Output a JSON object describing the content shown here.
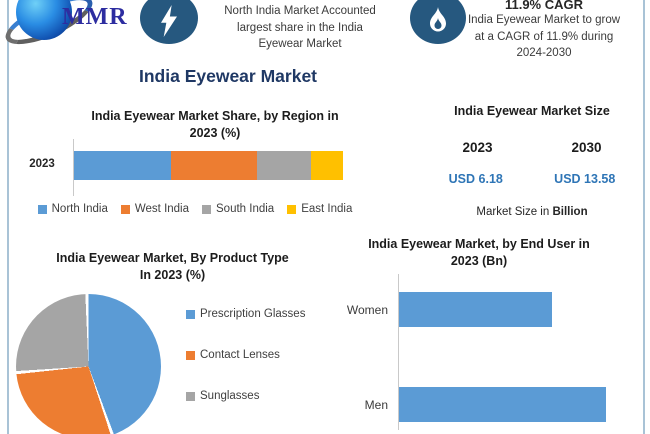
{
  "palette": {
    "blue": "#5B9BD5",
    "orange": "#ED7D31",
    "gray": "#A5A5A5",
    "yellow": "#FFC000",
    "navy_title": "#1F3864",
    "value_blue": "#2E75B6",
    "icon_blue": "#26587F",
    "frame": "#A9C3D6"
  },
  "logo": {
    "text": "MMR"
  },
  "header": {
    "highlight1": {
      "lines": [
        "North India Market Accounted",
        "largest share in the India",
        "Eyewear Market"
      ]
    },
    "highlight2": {
      "title": "11.9% CAGR",
      "lines": [
        "India Eyewear Market to grow",
        "at a CAGR of 11.9% during",
        "2024-2030"
      ]
    }
  },
  "main_title": "India Eyewear Market",
  "chart_data": [
    {
      "type": "bar",
      "subtype": "stacked-horizontal",
      "title": "India Eyewear Market Share, by Region in 2023 (%)",
      "title_lines": [
        "India Eyewear Market Share, by Region in",
        "2023 (%)"
      ],
      "categories": [
        "2023"
      ],
      "series": [
        {
          "name": "North India",
          "values": [
            36
          ]
        },
        {
          "name": "West India",
          "values": [
            32
          ]
        },
        {
          "name": "South India",
          "values": [
            20
          ]
        },
        {
          "name": "East India",
          "values": [
            12
          ]
        }
      ],
      "colors": [
        "#5B9BD5",
        "#ED7D31",
        "#A5A5A5",
        "#FFC000"
      ],
      "legend_position": "bottom",
      "grid": false
    },
    {
      "type": "table",
      "title": "India Eyewear Market Size",
      "columns": [
        "2023",
        "2030"
      ],
      "row": [
        "USD 6.18",
        "USD 13.58"
      ],
      "caption_prefix": "Market Size in ",
      "caption_bold": "Billion"
    },
    {
      "type": "pie",
      "title": "India Eyewear Market, By Product Type In 2023 (%)",
      "title_lines": [
        "India Eyewear Market, By Product Type",
        "In 2023 (%)"
      ],
      "labels": [
        "Prescription Glasses",
        "Contact Lenses",
        "Sunglasses"
      ],
      "values": [
        45,
        29,
        26
      ],
      "colors": [
        "#5B9BD5",
        "#ED7D31",
        "#A5A5A5"
      ],
      "legend_position": "right"
    },
    {
      "type": "bar",
      "subtype": "horizontal",
      "title": "India Eyewear Market, by End User in 2023 (Bn)",
      "title_lines": [
        "India Eyewear Market, by End User in",
        "2023 (Bn)"
      ],
      "categories": [
        "Women",
        "Men"
      ],
      "values_pct_of_longest": [
        74,
        100
      ],
      "color": "#5B9BD5",
      "grid": false
    }
  ]
}
